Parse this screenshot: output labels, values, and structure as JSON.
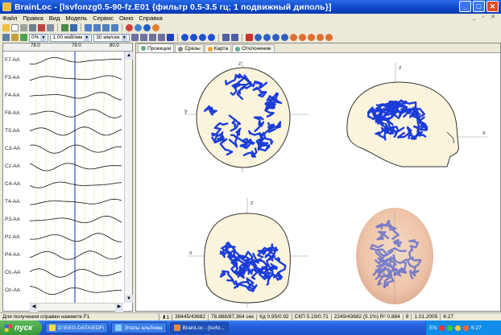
{
  "window": {
    "title": "BrainLoc - [lsvfonzg0.5-90-fz.E01 {фильтр 0.5-3.5 гц; 1 подвижный диполь}]",
    "minimize": "_",
    "maximize": "□",
    "close": "✕"
  },
  "menu": {
    "items": [
      "Файл",
      "Правка",
      "Вид",
      "Модель",
      "Сервис",
      "Окно",
      "Справка"
    ],
    "mdi_controls": "_ ▫ ✕"
  },
  "toolbar": {
    "zoom_value": "0%",
    "sensitivity_value": "1.00 мкВ/мм",
    "speed_value": "30 мм/сек"
  },
  "eeg": {
    "ruler": [
      "78.0",
      "79.0",
      "80.0"
    ],
    "channels": [
      "F7-AA",
      "F3-AA",
      "F4-AA",
      "F8-AA",
      "T3-AA",
      "C3-AA",
      "Cz-AA",
      "C4-AA",
      "T4-AA",
      "P3-AA",
      "Pz-AA",
      "P4-AA",
      "O1-AA",
      "Oz-AA"
    ]
  },
  "tabs": [
    "Проекции",
    "Срезы",
    "Карта",
    "Отклонение"
  ],
  "tab_icons": [
    "projections-icon",
    "slices-icon",
    "map-icon",
    "deviation-icon"
  ],
  "axes": {
    "top_left": {
      "top": "z",
      "left": "y"
    },
    "top_right": {
      "top": "z",
      "right": "x"
    },
    "bottom_left": {
      "top": "z",
      "left": "x"
    }
  },
  "status": {
    "hint": "Для получения справки нажмите  F1",
    "cells": [
      "⬇1",
      "39445/43682",
      "78.888/87.364 сек",
      "Кд  0.95/0.92",
      "СКП 5.19/0.71",
      "2249/43682 (5.1%) R² 0.884",
      "8",
      "1.01.2005",
      "6:27"
    ]
  },
  "taskbar": {
    "start": "пуск",
    "tasks": [
      "D:\\EEG-DATA\\EDF\\",
      "Этапы альбома",
      "BrainLoc - [lsvfo..."
    ],
    "tray_lang": "EN",
    "clock": "6:27"
  },
  "colors": {
    "dipole": "#1a3cd8",
    "head": "#fbf4dc",
    "titlebar": "#0a46c8"
  }
}
